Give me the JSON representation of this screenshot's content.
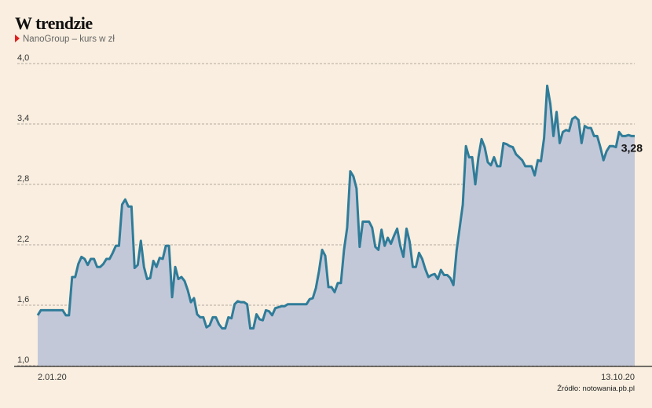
{
  "chart_data": {
    "type": "area",
    "title": "W trendzie",
    "subtitle": "NanoGroup – kurs w zł",
    "source": "Źródło: notowania.pb.pl",
    "categories": [
      "2.01.20",
      null,
      null,
      null,
      null,
      null,
      null,
      null,
      null,
      null,
      null,
      null,
      null,
      null,
      null,
      null,
      null,
      null,
      null,
      null,
      null,
      null,
      null,
      null,
      null,
      null,
      null,
      null,
      null,
      null,
      null,
      null,
      null,
      null,
      null,
      null,
      null,
      null,
      null,
      null,
      null,
      null,
      null,
      null,
      null,
      null,
      null,
      null,
      null,
      null,
      null,
      null,
      null,
      null,
      null,
      null,
      null,
      null,
      null,
      null,
      null,
      null,
      null,
      null,
      null,
      null,
      null,
      null,
      null,
      null,
      null,
      null,
      null,
      null,
      null,
      null,
      null,
      null,
      null,
      null,
      null,
      null,
      null,
      null,
      null,
      null,
      null,
      null,
      null,
      null,
      null,
      null,
      null,
      null,
      null,
      null,
      null,
      null,
      null,
      null,
      null,
      null,
      null,
      null,
      null,
      null,
      null,
      null,
      null,
      null,
      null,
      null,
      null,
      null,
      null,
      null,
      null,
      null,
      null,
      null,
      null,
      null,
      null,
      null,
      null,
      null,
      null,
      null,
      null,
      null,
      null,
      null,
      null,
      null,
      null,
      null,
      null,
      null,
      null,
      null,
      null,
      null,
      null,
      null,
      null,
      null,
      null,
      null,
      null,
      null,
      null,
      null,
      null,
      null,
      null,
      null,
      null,
      null,
      null,
      null,
      null,
      null,
      null,
      null,
      null,
      null,
      null,
      null,
      null,
      null,
      null,
      null,
      null,
      null,
      null,
      null,
      null,
      null,
      null,
      null,
      null,
      null,
      null,
      null,
      null,
      null,
      null,
      null,
      null,
      null,
      null,
      "13.10.20"
    ],
    "series": [
      {
        "name": "NanoGroup",
        "color": "#2f7c99",
        "fill": "#c3c8d8",
        "values": [
          1.5,
          1.55,
          1.55,
          1.55,
          1.55,
          1.55,
          1.55,
          1.55,
          1.55,
          1.5,
          1.5,
          1.88,
          1.88,
          2.01,
          2.08,
          2.06,
          2.0,
          2.06,
          2.06,
          1.98,
          1.98,
          2.01,
          2.06,
          2.06,
          2.12,
          2.19,
          2.19,
          2.6,
          2.65,
          2.58,
          2.58,
          1.97,
          2.0,
          2.24,
          1.98,
          1.86,
          1.87,
          2.04,
          1.98,
          2.07,
          2.06,
          2.19,
          2.19,
          1.68,
          1.98,
          1.86,
          1.88,
          1.84,
          1.75,
          1.63,
          1.67,
          1.51,
          1.48,
          1.48,
          1.38,
          1.4,
          1.48,
          1.48,
          1.41,
          1.37,
          1.37,
          1.48,
          1.47,
          1.61,
          1.64,
          1.63,
          1.63,
          1.61,
          1.37,
          1.37,
          1.51,
          1.46,
          1.45,
          1.55,
          1.54,
          1.5,
          1.57,
          1.58,
          1.59,
          1.59,
          1.61,
          1.61,
          1.61,
          1.61,
          1.61,
          1.61,
          1.61,
          1.66,
          1.67,
          1.77,
          1.94,
          2.15,
          2.09,
          1.78,
          1.78,
          1.73,
          1.82,
          1.82,
          2.15,
          2.37,
          2.93,
          2.88,
          2.76,
          2.18,
          2.43,
          2.43,
          2.43,
          2.37,
          2.18,
          2.15,
          2.35,
          2.19,
          2.27,
          2.21,
          2.29,
          2.36,
          2.19,
          2.08,
          2.36,
          2.23,
          1.98,
          1.98,
          2.12,
          2.06,
          1.96,
          1.88,
          1.9,
          1.91,
          1.86,
          1.95,
          1.9,
          1.9,
          1.87,
          1.8,
          2.14,
          2.37,
          2.6,
          3.18,
          3.07,
          3.07,
          2.8,
          3.07,
          3.25,
          3.17,
          3.02,
          2.99,
          3.07,
          2.98,
          2.98,
          3.21,
          3.2,
          3.18,
          3.17,
          3.1,
          3.07,
          3.04,
          2.98,
          2.98,
          2.98,
          2.89,
          3.04,
          3.03,
          3.26,
          3.78,
          3.6,
          3.28,
          3.52,
          3.21,
          3.32,
          3.34,
          3.33,
          3.45,
          3.47,
          3.44,
          3.21,
          3.38,
          3.36,
          3.36,
          3.28,
          3.28,
          3.17,
          3.04,
          3.13,
          3.18,
          3.18,
          3.17,
          3.32,
          3.28,
          3.28,
          3.29,
          3.28,
          3.28
        ],
        "value_labels": [
          null,
          null,
          null,
          null,
          null,
          null,
          null,
          null,
          null,
          null,
          null,
          null,
          null,
          null,
          null,
          null,
          null,
          null,
          null,
          null,
          null,
          null,
          null,
          null,
          null,
          null,
          null,
          null,
          null,
          null,
          null,
          null,
          null,
          null,
          null,
          null,
          null,
          null,
          null,
          null,
          null,
          null,
          null,
          null,
          null,
          null,
          null,
          null,
          null,
          null,
          null,
          null,
          null,
          null,
          null,
          null,
          null,
          null,
          null,
          null,
          null,
          null,
          null,
          null,
          null,
          null,
          null,
          null,
          null,
          null,
          null,
          null,
          null,
          null,
          null,
          null,
          null,
          null,
          null,
          null,
          null,
          null,
          null,
          null,
          null,
          null,
          null,
          null,
          null,
          null,
          null,
          null,
          null,
          null,
          null,
          null,
          null,
          null,
          null,
          null,
          null,
          null,
          null,
          null,
          null,
          null,
          null,
          null,
          null,
          null,
          null,
          null,
          null,
          null,
          null,
          null,
          null,
          null,
          null,
          null,
          null,
          null,
          null,
          null,
          null,
          null,
          null,
          null,
          null,
          null,
          null,
          null,
          null,
          null,
          null,
          null,
          null,
          null,
          null,
          null,
          null,
          null,
          null,
          null,
          null,
          null,
          null,
          null,
          null,
          null,
          null,
          null,
          null,
          null,
          null,
          null,
          null,
          null,
          null,
          null,
          null,
          null,
          null,
          null,
          null,
          null,
          null,
          null,
          null,
          null,
          null,
          null,
          null,
          null,
          null,
          null,
          null,
          null,
          null,
          null,
          null,
          null,
          null,
          null,
          null,
          null,
          null,
          null,
          null,
          null,
          null,
          "3,28"
        ]
      }
    ],
    "ylim": [
      1.0,
      4.0
    ],
    "yticks": [
      {
        "value": 1.0,
        "label": "1,0"
      },
      {
        "value": 1.6,
        "label": "1,6"
      },
      {
        "value": 2.2,
        "label": "2,2"
      },
      {
        "value": 2.8,
        "label": "2,8"
      },
      {
        "value": 3.4,
        "label": "3,4"
      },
      {
        "value": 4.0,
        "label": "4,0"
      }
    ],
    "grid": true
  }
}
